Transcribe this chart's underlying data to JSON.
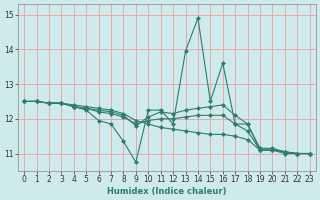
{
  "xlabel": "Humidex (Indice chaleur)",
  "ylabel": "",
  "xlim": [
    -0.5,
    23.5
  ],
  "ylim": [
    10.5,
    15.3
  ],
  "yticks": [
    11,
    12,
    13,
    14,
    15
  ],
  "xticks": [
    0,
    1,
    2,
    3,
    4,
    5,
    6,
    7,
    8,
    9,
    10,
    11,
    12,
    13,
    14,
    15,
    16,
    17,
    18,
    19,
    20,
    21,
    22,
    23
  ],
  "bg_color": "#ceeaea",
  "grid_color": "#e8a0a0",
  "line_color": "#2e7d6e",
  "marker": "D",
  "marker_size": 2.0,
  "lines": [
    [
      12.5,
      12.5,
      12.45,
      12.45,
      12.35,
      12.25,
      11.95,
      11.85,
      11.35,
      10.75,
      12.25,
      12.25,
      11.85,
      13.95,
      14.9,
      12.5,
      13.6,
      11.85,
      11.85,
      11.1,
      11.1,
      11.0,
      11.0,
      11.0
    ],
    [
      12.5,
      12.5,
      12.45,
      12.45,
      12.35,
      12.3,
      12.25,
      12.2,
      12.1,
      11.8,
      12.05,
      12.2,
      12.15,
      12.25,
      12.3,
      12.35,
      12.4,
      12.1,
      11.85,
      11.15,
      11.15,
      11.05,
      11.0,
      11.0
    ],
    [
      12.5,
      12.5,
      12.45,
      12.45,
      12.35,
      12.3,
      12.2,
      12.15,
      12.05,
      11.85,
      11.95,
      12.0,
      12.0,
      12.05,
      12.1,
      12.1,
      12.1,
      11.85,
      11.65,
      11.1,
      11.1,
      11.05,
      11.0,
      11.0
    ],
    [
      12.5,
      12.5,
      12.45,
      12.45,
      12.4,
      12.35,
      12.3,
      12.25,
      12.15,
      11.95,
      11.85,
      11.75,
      11.7,
      11.65,
      11.6,
      11.55,
      11.55,
      11.5,
      11.4,
      11.1,
      11.1,
      11.05,
      11.0,
      11.0
    ]
  ]
}
